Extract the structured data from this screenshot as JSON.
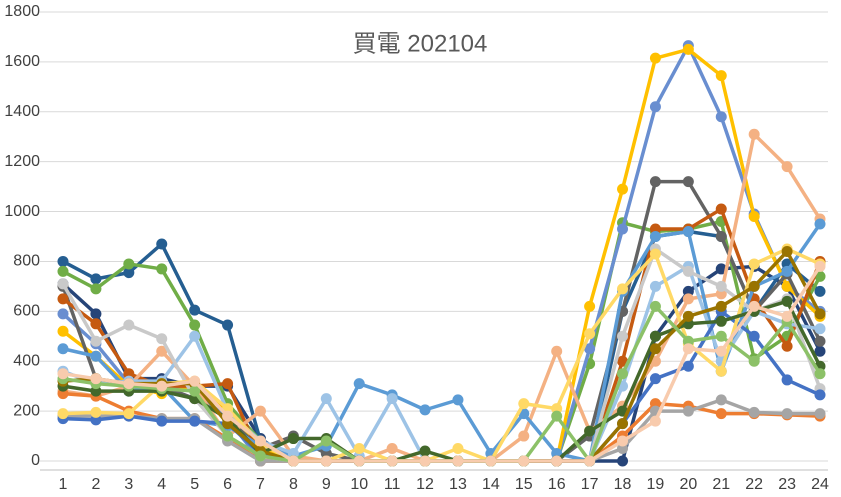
{
  "chart_data": {
    "type": "line",
    "title": "買電 202104",
    "categories": [
      "1",
      "2",
      "3",
      "4",
      "5",
      "6",
      "7",
      "8",
      "9",
      "10",
      "11",
      "12",
      "13",
      "14",
      "15",
      "16",
      "17",
      "18",
      "19",
      "20",
      "21",
      "22",
      "23",
      "24"
    ],
    "ylim": [
      0,
      1800
    ],
    "yticks": [
      0,
      200,
      400,
      600,
      800,
      1000,
      1200,
      1400,
      1600,
      1800
    ],
    "grid": true,
    "series": [
      {
        "color": "#264478",
        "values": [
          710,
          590,
          330,
          330,
          300,
          300,
          90,
          0,
          0,
          0,
          0,
          0,
          0,
          0,
          0,
          0,
          0,
          0,
          500,
          680,
          770,
          780,
          700,
          440
        ]
      },
      {
        "color": "#255E91",
        "values": [
          800,
          730,
          755,
          870,
          605,
          545,
          80,
          0,
          0,
          0,
          0,
          0,
          0,
          0,
          0,
          0,
          0,
          600,
          900,
          920,
          900,
          600,
          790,
          680
        ]
      },
      {
        "color": "#70AD47",
        "values": [
          760,
          690,
          790,
          770,
          545,
          230,
          80,
          0,
          0,
          0,
          0,
          0,
          0,
          0,
          0,
          0,
          390,
          955,
          920,
          930,
          960,
          410,
          500,
          740
        ]
      },
      {
        "color": "#698ED0",
        "values": [
          590,
          470,
          310,
          300,
          280,
          170,
          0,
          0,
          0,
          0,
          0,
          0,
          0,
          0,
          0,
          0,
          450,
          930,
          1420,
          1665,
          1380,
          990,
          700,
          600
        ]
      },
      {
        "color": "#FFC000",
        "values": [
          520,
          420,
          300,
          270,
          300,
          200,
          60,
          0,
          0,
          0,
          0,
          0,
          0,
          0,
          0,
          0,
          620,
          1090,
          1615,
          1650,
          1545,
          980,
          700,
          580
        ]
      },
      {
        "color": "#636363",
        "values": [
          700,
          330,
          300,
          300,
          250,
          170,
          50,
          100,
          30,
          0,
          0,
          0,
          0,
          0,
          0,
          0,
          100,
          600,
          1120,
          1120,
          900,
          600,
          750,
          480
        ]
      },
      {
        "color": "#C55A11",
        "values": [
          650,
          550,
          350,
          300,
          300,
          310,
          20,
          0,
          0,
          0,
          0,
          0,
          0,
          0,
          0,
          0,
          0,
          400,
          930,
          930,
          1010,
          650,
          460,
          800
        ]
      },
      {
        "color": "#F4B183",
        "values": [
          280,
          260,
          300,
          440,
          300,
          100,
          200,
          20,
          0,
          0,
          50,
          0,
          0,
          0,
          100,
          440,
          120,
          220,
          400,
          650,
          670,
          1310,
          1180,
          970
        ]
      },
      {
        "color": "#5B9BD5",
        "values": [
          450,
          420,
          280,
          300,
          160,
          140,
          60,
          20,
          60,
          310,
          265,
          205,
          245,
          30,
          190,
          30,
          0,
          680,
          900,
          920,
          360,
          700,
          760,
          950
        ]
      },
      {
        "color": "#9DC3E6",
        "values": [
          360,
          310,
          320,
          320,
          500,
          200,
          80,
          30,
          250,
          20,
          250,
          0,
          0,
          0,
          0,
          0,
          0,
          300,
          700,
          780,
          400,
          600,
          550,
          530
        ]
      },
      {
        "color": "#ED7D31",
        "values": [
          270,
          260,
          200,
          170,
          170,
          90,
          0,
          0,
          0,
          0,
          0,
          0,
          0,
          0,
          0,
          0,
          0,
          100,
          230,
          220,
          190,
          190,
          185,
          180
        ]
      },
      {
        "color": "#A5A5A5",
        "values": [
          180,
          180,
          180,
          170,
          170,
          80,
          0,
          0,
          0,
          0,
          0,
          0,
          0,
          0,
          0,
          0,
          0,
          50,
          200,
          200,
          245,
          195,
          190,
          190
        ]
      },
      {
        "color": "#C9C9C9",
        "values": [
          710,
          480,
          545,
          490,
          250,
          100,
          20,
          0,
          0,
          0,
          0,
          0,
          0,
          0,
          0,
          0,
          0,
          500,
          850,
          760,
          700,
          600,
          650,
          290
        ]
      },
      {
        "color": "#4472C4",
        "values": [
          170,
          165,
          180,
          160,
          160,
          150,
          30,
          0,
          0,
          0,
          0,
          0,
          0,
          0,
          0,
          0,
          0,
          150,
          330,
          380,
          600,
          500,
          325,
          265
        ]
      },
      {
        "color": "#FFD966",
        "values": [
          190,
          195,
          190,
          310,
          320,
          210,
          70,
          0,
          0,
          50,
          0,
          0,
          50,
          0,
          230,
          210,
          510,
          690,
          830,
          470,
          360,
          790,
          850,
          790
        ]
      },
      {
        "color": "#43682B",
        "values": [
          300,
          280,
          280,
          280,
          250,
          170,
          30,
          90,
          90,
          0,
          0,
          40,
          0,
          0,
          0,
          0,
          120,
          200,
          500,
          550,
          560,
          600,
          640,
          380
        ]
      },
      {
        "color": "#997300",
        "values": [
          320,
          330,
          310,
          310,
          310,
          150,
          40,
          0,
          0,
          0,
          0,
          0,
          0,
          0,
          0,
          0,
          0,
          150,
          450,
          580,
          620,
          700,
          840,
          590
        ]
      },
      {
        "color": "#8CC168",
        "values": [
          330,
          310,
          300,
          290,
          280,
          100,
          20,
          0,
          80,
          0,
          0,
          0,
          0,
          0,
          0,
          180,
          0,
          350,
          620,
          480,
          500,
          400,
          560,
          350
        ]
      },
      {
        "color": "#F8CBAD",
        "values": [
          350,
          330,
          310,
          300,
          320,
          180,
          80,
          0,
          0,
          0,
          0,
          0,
          0,
          0,
          0,
          0,
          0,
          80,
          160,
          450,
          440,
          620,
          580,
          780
        ]
      }
    ]
  }
}
